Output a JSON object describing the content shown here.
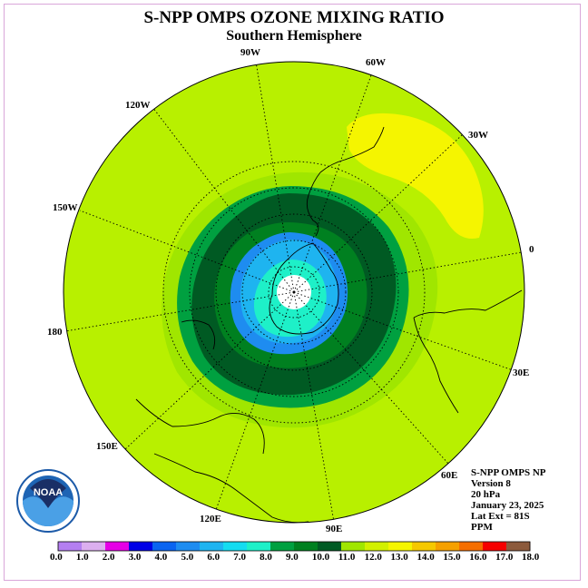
{
  "title": "S-NPP OMPS OZONE MIXING RATIO",
  "subtitle": "Southern Hemisphere",
  "longitude_labels": {
    "w90": "90W",
    "w60": "60W",
    "w30": "30W",
    "e0": "0",
    "w120": "120W",
    "w150": "150W",
    "e180": "180",
    "e150": "150E",
    "e120": "120E",
    "e90": "90E",
    "e60": "60E",
    "e30": "30E"
  },
  "info": {
    "instrument": "S-NPP OMPS NP",
    "version": "Version 8",
    "level": "20 hPa",
    "date": "January 23, 2025",
    "lat_ext": "Lat Ext = 81S",
    "units": "PPM"
  },
  "logo_text": "NOAA",
  "colorbar": {
    "labels": [
      "0.0",
      "1.0",
      "2.0",
      "3.0",
      "4.0",
      "5.0",
      "6.0",
      "7.0",
      "8.0",
      "9.0",
      "10.0",
      "11.0",
      "12.0",
      "13.0",
      "14.0",
      "15.0",
      "16.0",
      "17.0",
      "18.0"
    ],
    "colors": [
      "#b47ff0",
      "#dcafef",
      "#e600e6",
      "#0000e6",
      "#0a64f0",
      "#1e8cf0",
      "#1eb4f0",
      "#14dcf0",
      "#1ef0c8",
      "#00a040",
      "#008020",
      "#005a23",
      "#a0e600",
      "#d2f000",
      "#f5f500",
      "#f5c800",
      "#f5a000",
      "#f56e00",
      "#f50000",
      "#8c5a3c"
    ]
  },
  "map_colors": {
    "background": "#b8f000",
    "yellow": "#f5f500",
    "light_green": "#a0e600",
    "green": "#00a040",
    "dark_green": "#005a23",
    "mid_green": "#008020",
    "blue": "#1e8cf0",
    "light_blue": "#1eb4f0",
    "cyan": "#1ef0c8",
    "pole": "#ffffff"
  }
}
